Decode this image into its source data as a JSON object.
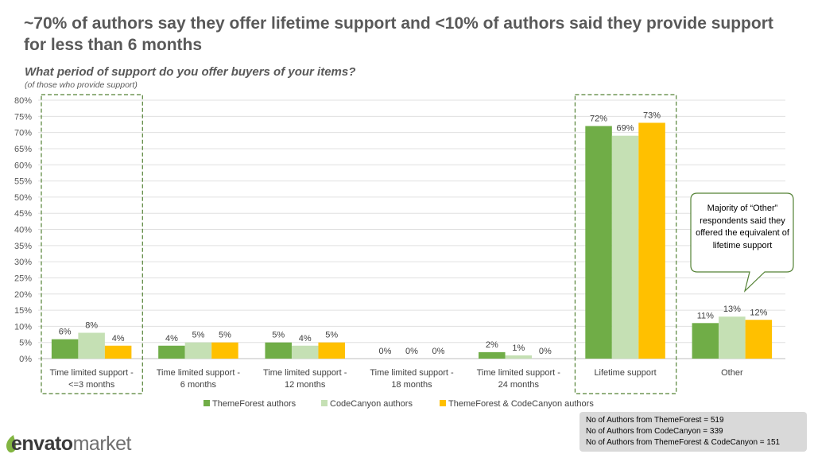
{
  "header": {
    "title": "~70% of authors say they offer lifetime support and <10% of authors said they provide support for less than 6 months",
    "subtitle": "What period of support do you offer buyers of your items?",
    "note": "(of those who provide support)"
  },
  "callout": {
    "text": "Majority of “Other” respondents said they offered the equivalent of lifetime support"
  },
  "footnote": {
    "lines": [
      "No of Authors from ThemeForest = 519",
      "No of Authors from CodeCanyon = 339",
      "No of Authors from ThemeForest & CodeCanyon = 151"
    ]
  },
  "logo": {
    "part1": "envato",
    "part2": "market"
  },
  "colors": {
    "themeforest": "#70ad47",
    "codecanyon": "#c5e0b4",
    "both": "#ffc000",
    "highlight_border": "#548235",
    "gridline": "#e0e0e0"
  },
  "chart_data": {
    "type": "bar",
    "categories": [
      [
        "Time limited support -",
        "<=3 months"
      ],
      [
        "Time limited support -",
        "6 months"
      ],
      [
        "Time limited support -",
        "12 months"
      ],
      [
        "Time limited support -",
        "18 months"
      ],
      [
        "Time limited support -",
        "24 months"
      ],
      [
        "Lifetime support"
      ],
      [
        "Other"
      ]
    ],
    "series": [
      {
        "name": "ThemeForest authors",
        "values": [
          6,
          4,
          5,
          0,
          2,
          72,
          11
        ],
        "labels": [
          "6%",
          "4%",
          "5%",
          "0%",
          "2%",
          "72%",
          "11%"
        ]
      },
      {
        "name": "CodeCanyon authors",
        "values": [
          8,
          5,
          4,
          0,
          1,
          69,
          13
        ],
        "labels": [
          "8%",
          "5%",
          "4%",
          "0%",
          "1%",
          "69%",
          "13%"
        ]
      },
      {
        "name": "ThemeForest &  CodeCanyon authors",
        "values": [
          4,
          5,
          5,
          0,
          0,
          73,
          12
        ],
        "labels": [
          "4%",
          "5%",
          "5%",
          "0%",
          "0%",
          "73%",
          "12%"
        ]
      }
    ],
    "yticks": [
      "0%",
      "5%",
      "10%",
      "15%",
      "20%",
      "25%",
      "30%",
      "35%",
      "40%",
      "45%",
      "50%",
      "55%",
      "60%",
      "65%",
      "70%",
      "75%",
      "80%"
    ],
    "ylim": [
      0,
      80
    ],
    "grid": true,
    "legend": "bottom",
    "highlighted_categories": [
      0,
      5
    ]
  }
}
